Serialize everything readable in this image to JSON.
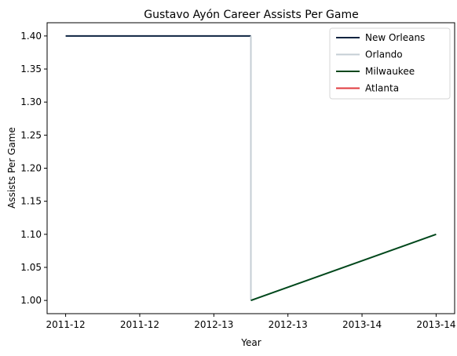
{
  "chart_data": {
    "type": "line",
    "title": "Gustavo Ayón Career Assists Per Game",
    "xlabel": "Year",
    "ylabel": "Assists Per Game",
    "x_tick_labels": [
      "2011-12",
      "2011-12",
      "2012-13",
      "2012-13",
      "2013-14",
      "2013-14"
    ],
    "x_tick_positions": [
      0,
      1,
      2,
      3,
      4,
      5
    ],
    "xlim": [
      -0.25,
      5.25
    ],
    "ylim": [
      0.98,
      1.42
    ],
    "y_ticks": [
      1.0,
      1.05,
      1.1,
      1.15,
      1.2,
      1.25,
      1.3,
      1.35,
      1.4
    ],
    "y_tick_labels": [
      "1.00",
      "1.05",
      "1.10",
      "1.15",
      "1.20",
      "1.25",
      "1.30",
      "1.35",
      "1.40"
    ],
    "grid": false,
    "legend_position": "upper-right",
    "series": [
      {
        "name": "New Orleans",
        "color": "#0C2340",
        "x": [
          0,
          2.5
        ],
        "y": [
          1.4,
          1.4
        ]
      },
      {
        "name": "Orlando",
        "color": "#C4CED4",
        "x": [
          2.5,
          2.5
        ],
        "y": [
          1.4,
          1.0
        ]
      },
      {
        "name": "Milwaukee",
        "color": "#00471B",
        "x": [
          2.5,
          5
        ],
        "y": [
          1.0,
          1.1
        ]
      },
      {
        "name": "Atlanta",
        "color": "#E03A3E",
        "x": [],
        "y": []
      }
    ]
  }
}
